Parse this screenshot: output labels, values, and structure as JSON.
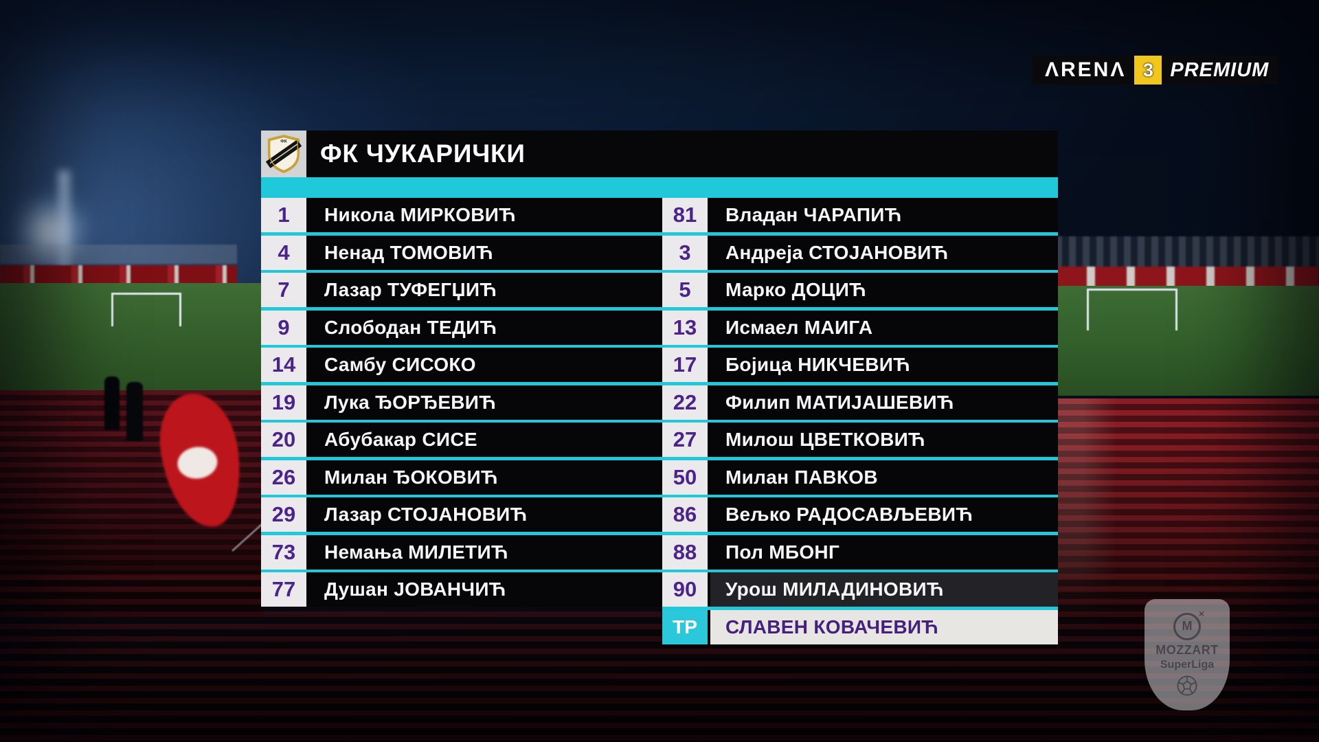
{
  "colors": {
    "accent": "#1fc9da",
    "row_bg": "#060608",
    "row_text": "#f6f6f8",
    "number_bg": "#ebe9eb",
    "number_text": "#4b2489",
    "highlight_row_bg": "#232327",
    "coach_badge_bg": "#2bc7da",
    "coach_row_bg": "#e8e6e3",
    "coach_text": "#45217e",
    "header_bg": "#070709",
    "badge_cell_bg": "#d3d4d6",
    "channel_box": "#f2c71d"
  },
  "panel": {
    "title": "ФК ЧУКАРИЧКИ"
  },
  "lineup": {
    "left": [
      {
        "number": "1",
        "name": "Никола МИРКОВИЋ"
      },
      {
        "number": "4",
        "name": "Ненад ТОМОВИЋ"
      },
      {
        "number": "7",
        "name": "Лазар ТУФЕГЏИЋ"
      },
      {
        "number": "9",
        "name": "Слободан ТЕДИЋ"
      },
      {
        "number": "14",
        "name": "Самбу СИСОКО"
      },
      {
        "number": "19",
        "name": "Лука ЂОРЂЕВИЋ"
      },
      {
        "number": "20",
        "name": "Абубакар СИСЕ"
      },
      {
        "number": "26",
        "name": "Милан ЂОКОВИЋ"
      },
      {
        "number": "29",
        "name": "Лазар СТОЈАНОВИЋ"
      },
      {
        "number": "73",
        "name": "Немања МИЛЕТИЋ"
      },
      {
        "number": "77",
        "name": "Душан ЈОВАНЧИЋ"
      }
    ],
    "right": [
      {
        "number": "81",
        "name": "Владан ЧАРАПИЋ"
      },
      {
        "number": "3",
        "name": "Андреја СТОЈАНОВИЋ"
      },
      {
        "number": "5",
        "name": "Марко ДОЦИЋ"
      },
      {
        "number": "13",
        "name": "Исмаел МАИГА"
      },
      {
        "number": "17",
        "name": "Бојица НИКЧЕВИЋ"
      },
      {
        "number": "22",
        "name": "Филип МАТИЈАШЕВИЋ"
      },
      {
        "number": "27",
        "name": "Милош ЦВЕТКОВИЋ"
      },
      {
        "number": "50",
        "name": "Милан ПАВКОВ"
      },
      {
        "number": "86",
        "name": "Вељко РАДОСАВЉЕВИЋ"
      },
      {
        "number": "88",
        "name": "Пол МБОНГ"
      },
      {
        "number": "90",
        "name": "Урош МИЛАДИНОВИЋ",
        "highlight": true
      },
      {
        "role": "ТР",
        "name": "СЛАВЕН КОВАЧЕВИЋ",
        "coach": true
      }
    ]
  },
  "broadcaster": {
    "brand": "ΛRENΛ",
    "channel": "3",
    "tier": "PREMIUM"
  },
  "watermark": {
    "monogram": "M",
    "mark": "×",
    "brand": "MOZZART",
    "league": "SuperLiga"
  }
}
